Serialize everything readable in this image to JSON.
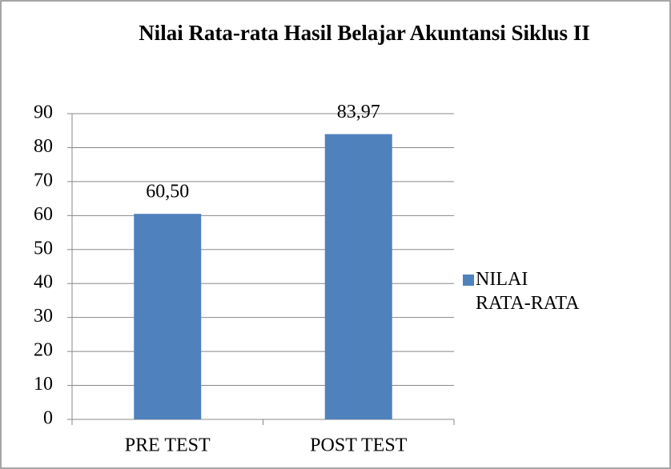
{
  "chart_data": {
    "type": "bar",
    "title": "Nilai Rata-rata Hasil Belajar Akuntansi Siklus II",
    "categories": [
      "PRE TEST",
      "POST TEST"
    ],
    "series": [
      {
        "name": "NILAI RATA-RATA",
        "color": "#4f81bd",
        "values": [
          60.5,
          83.97
        ],
        "value_labels": [
          "60,50",
          "83,97"
        ]
      }
    ],
    "ylim": [
      0,
      90
    ],
    "yticks": [
      0,
      10,
      20,
      30,
      40,
      50,
      60,
      70,
      80,
      90
    ],
    "grid": true,
    "legend": "right"
  }
}
